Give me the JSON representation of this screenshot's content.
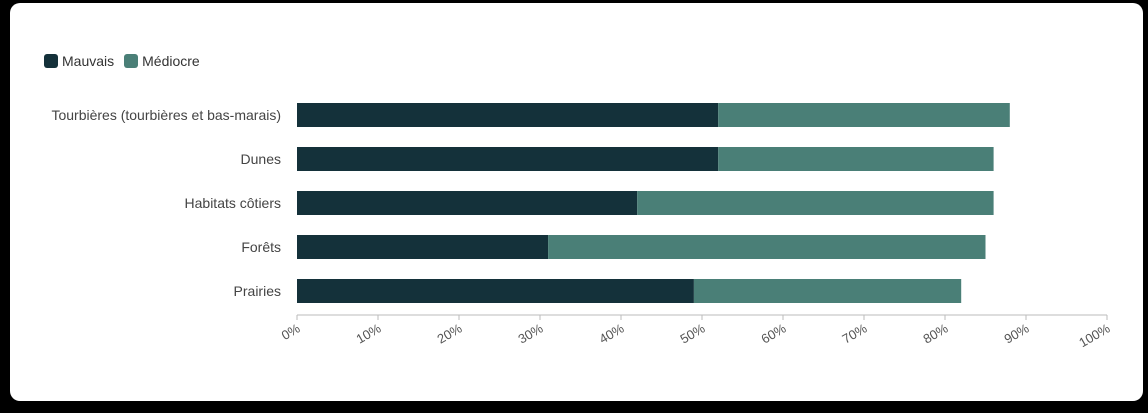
{
  "chart_data": {
    "type": "bar",
    "orientation": "horizontal",
    "stacked": true,
    "categories": [
      "Tourbières (tourbières et bas-marais)",
      "Dunes",
      "Habitats côtiers",
      "Forêts",
      "Prairies"
    ],
    "series": [
      {
        "name": "Mauvais",
        "color": "#14313a",
        "values": [
          52,
          52,
          42,
          31,
          49
        ]
      },
      {
        "name": "Médiocre",
        "color": "#4a7f77",
        "values": [
          36,
          34,
          44,
          54,
          33
        ]
      }
    ],
    "xlim": [
      0,
      100
    ],
    "x_ticks": [
      "0%",
      "10%",
      "20%",
      "30%",
      "40%",
      "50%",
      "60%",
      "70%",
      "80%",
      "90%",
      "100%"
    ],
    "legend_position": "top-left",
    "grid": false
  }
}
